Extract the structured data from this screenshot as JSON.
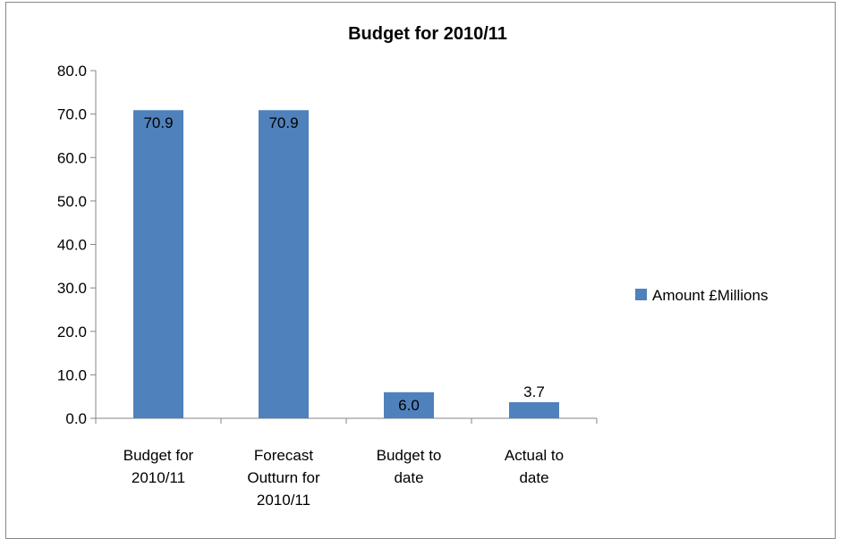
{
  "chart_data": {
    "type": "bar",
    "title": "Budget for 2010/11",
    "xlabel": "",
    "ylabel": "",
    "categories": [
      [
        "Budget for",
        "2010/11"
      ],
      [
        "Forecast",
        "Outturn for",
        "2010/11"
      ],
      [
        "Budget to",
        "date"
      ],
      [
        "Actual to",
        "date"
      ]
    ],
    "series": [
      {
        "name": "Amount £Millions",
        "values": [
          70.9,
          70.9,
          6.0,
          3.7
        ],
        "color": "#4F81BD"
      }
    ],
    "value_labels": [
      "70.9",
      "70.9",
      "6.0",
      "3.7"
    ],
    "ylim": [
      0,
      80
    ],
    "yticks": [
      "0.0",
      "10.0",
      "20.0",
      "30.0",
      "40.0",
      "50.0",
      "60.0",
      "70.0",
      "80.0"
    ],
    "grid": false,
    "legend_position": "right"
  }
}
